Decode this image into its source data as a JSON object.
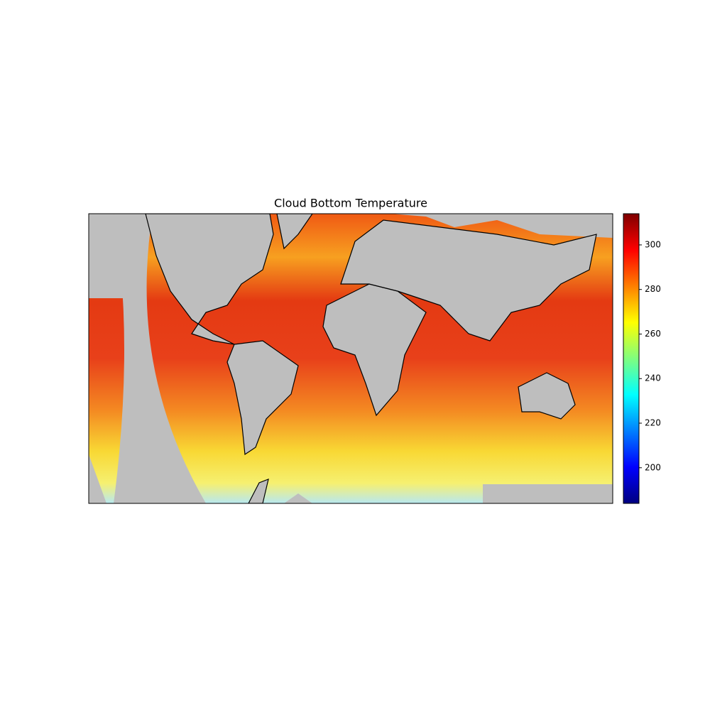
{
  "chart_data": {
    "type": "map",
    "title": "Cloud Bottom Temperature",
    "colormap": "jet",
    "clim": [
      184,
      314
    ],
    "cticks": [
      200,
      220,
      240,
      260,
      280,
      300
    ]
  }
}
